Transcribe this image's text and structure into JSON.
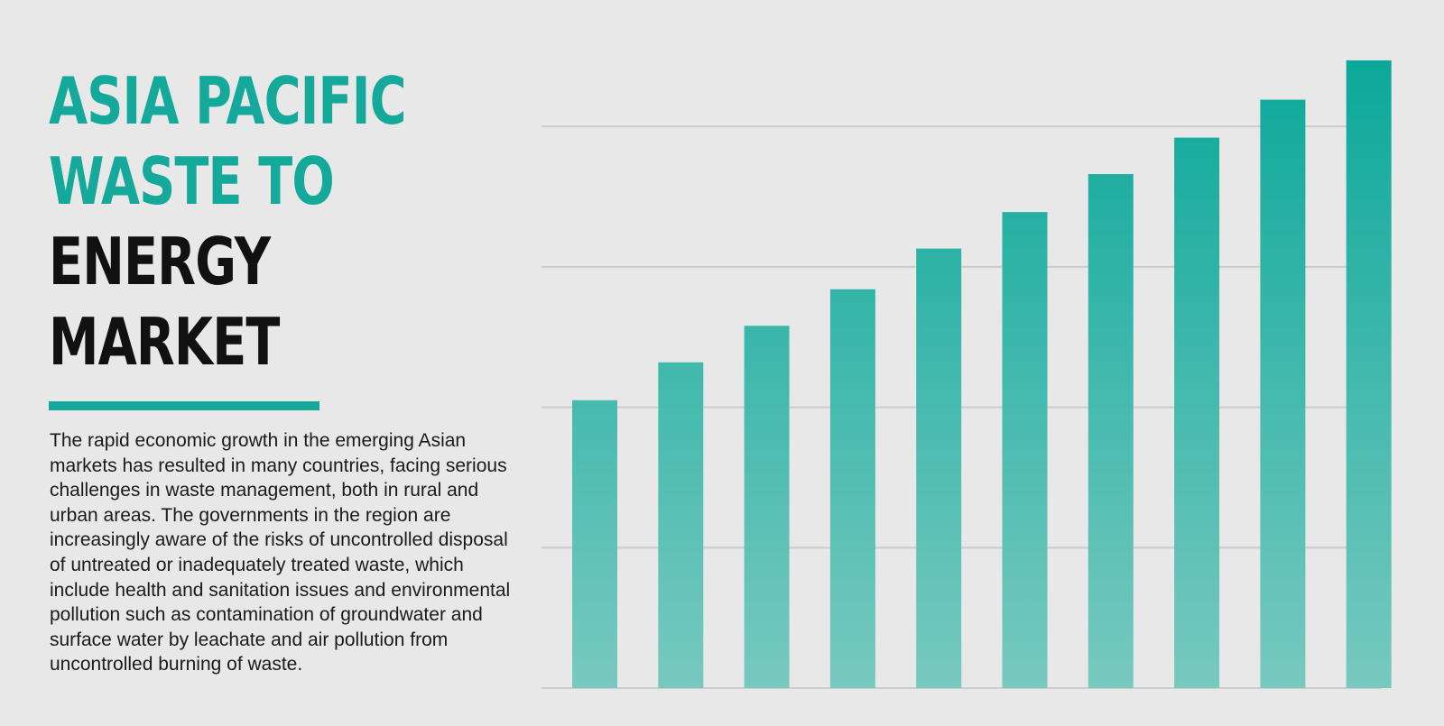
{
  "title_lines": [
    {
      "text": "ASIA PACIFIC",
      "color": "#14a99b"
    },
    {
      "text": "WASTE TO",
      "color": "#14a99b"
    },
    {
      "text": "ENERGY",
      "color": "#111111"
    },
    {
      "text": "MARKET",
      "color": "#111111"
    }
  ],
  "accent_color": "#14a99b",
  "description": "The rapid economic growth in the emerging Asian markets has resulted in many countries, facing serious challenges in waste management, both in rural and urban areas. The governments in the region are increasingly aware of the risks of uncontrolled disposal of untreated or inadequately treated waste, which include health and sanitation issues and environmental pollution such as contamination of groundwater and surface water by leachate and air pollution from uncontrolled burning of waste.",
  "chart_data": {
    "type": "bar",
    "categories": [
      "",
      "",
      "",
      "",
      "",
      "",
      "",
      "",
      "",
      ""
    ],
    "values": [
      2.05,
      2.32,
      2.58,
      2.84,
      3.13,
      3.39,
      3.66,
      3.92,
      4.19,
      4.47
    ],
    "ylim": [
      0,
      4.9
    ],
    "gridlines": [
      1,
      2,
      3,
      4
    ],
    "grid": true,
    "legend": "none",
    "bar_color_top": "#0aa89a",
    "bar_color_bottom": "#78c9bf",
    "grid_color": "#cccccc",
    "title": "",
    "xlabel": "",
    "ylabel": ""
  }
}
